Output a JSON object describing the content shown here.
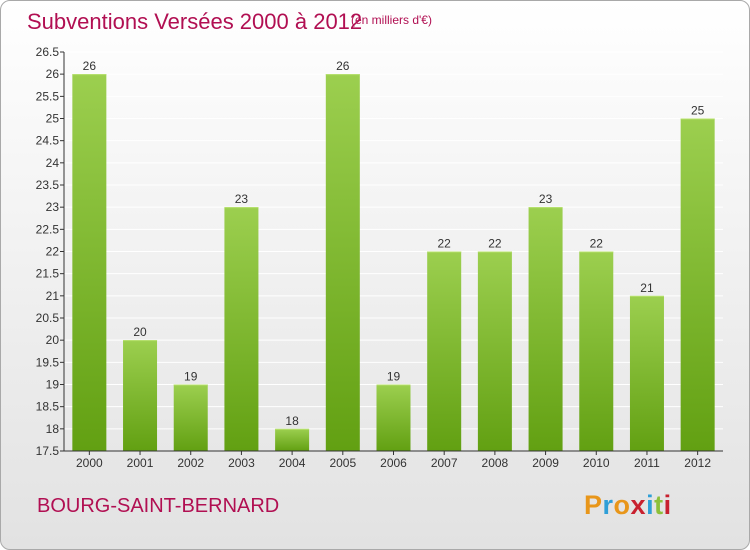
{
  "title": "Subventions Versées 2000 à 2012",
  "subtitle": "(en milliers d'€)",
  "commune": "BOURG-SAINT-BERNARD",
  "logo": {
    "text": "Proxiti",
    "letters": [
      {
        "char": "P",
        "color": "#e8961a"
      },
      {
        "char": "r",
        "color": "#2f9fd7"
      },
      {
        "char": "o",
        "color": "#e8961a"
      },
      {
        "char": "x",
        "color": "#c8202f"
      },
      {
        "char": "i",
        "color": "#2f9fd7"
      },
      {
        "char": "t",
        "color": "#8dc03a"
      },
      {
        "char": "i",
        "color": "#c8202f"
      }
    ]
  },
  "colors": {
    "title": "#b10f52",
    "bar_light": "#9ccf4f",
    "bar_dark": "#62a012",
    "bar_top": "#b4df6a",
    "axis": "#333333",
    "grid": "#ffffff"
  },
  "chart_data": {
    "type": "bar",
    "categories": [
      "2000",
      "2001",
      "2002",
      "2003",
      "2004",
      "2005",
      "2006",
      "2007",
      "2008",
      "2009",
      "2010",
      "2011",
      "2012"
    ],
    "values": [
      26,
      20,
      19,
      23,
      18,
      26,
      19,
      22,
      22,
      23,
      22,
      21,
      25
    ],
    "data_labels": [
      "26",
      "20",
      "19",
      "23",
      "18",
      "26",
      "19",
      "22",
      "22",
      "23",
      "22",
      "21",
      "25"
    ],
    "yticks": [
      "17.5",
      "18",
      "18.5",
      "19",
      "19.5",
      "20",
      "20.5",
      "21",
      "21.5",
      "22",
      "22.5",
      "23",
      "23.5",
      "24",
      "24.5",
      "25",
      "25.5",
      "26",
      "26.5"
    ],
    "ylim": [
      17.5,
      26.5
    ],
    "grid": true,
    "title": "Subventions Versées 2000 à 2012",
    "xlabel": "",
    "ylabel": "(en milliers d'€)"
  }
}
